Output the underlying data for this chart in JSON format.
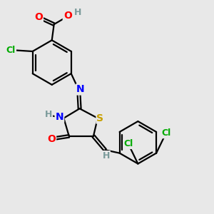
{
  "bg_color": "#e8e8e8",
  "atom_colors": {
    "C": "#000000",
    "H": "#7a9a9a",
    "O": "#ff0000",
    "N": "#0000ff",
    "S": "#c8a000",
    "Cl": "#00aa00"
  }
}
